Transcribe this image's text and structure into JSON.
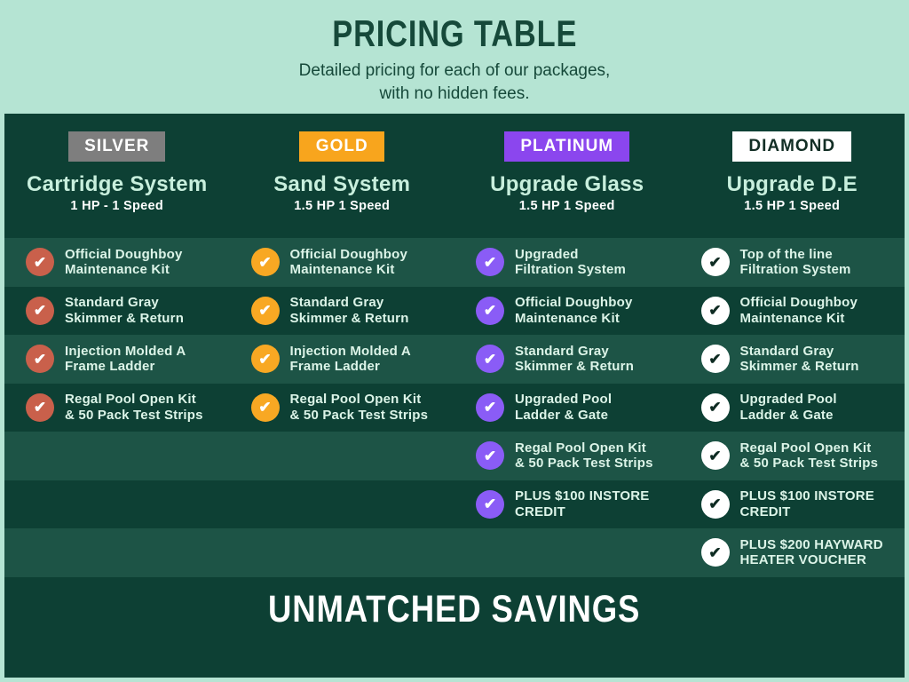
{
  "header": {
    "title": "PRICING TABLE",
    "subtitle": "Detailed pricing for each of our packages,\nwith no hidden fees."
  },
  "footer": {
    "banner": "UNMATCHED SAVINGS"
  },
  "colors": {
    "mint_background": "#b5e4d3",
    "panel_dark": "#0d4034",
    "row_light": "#1d5446",
    "heading_green": "#16493a",
    "title_mint": "#c8efdd",
    "feature_text": "#dcf4e8",
    "silver_badge": "#7e7e7e",
    "gold_badge": "#f8a51d",
    "platinum_badge": "#8b46ee",
    "diamond_badge": "#ffffff",
    "silver_check": "#c9604b",
    "gold_check": "#f8a823",
    "platinum_check": "#8a5cf6",
    "diamond_check": "#ffffff",
    "diamond_check_glyph": "#0e2b22"
  },
  "rows_count": 7,
  "columns": [
    {
      "id": "silver",
      "badge": "SILVER",
      "badge_bg": "#7e7e7e",
      "badge_text_color": "#ffffff",
      "check_bg": "#c9604b",
      "check_color": "#ffffff",
      "title": "Cartridge System",
      "subtitle": "1 HP - 1 Speed",
      "features": [
        "Official Doughboy\nMaintenance Kit",
        "Standard Gray\nSkimmer & Return",
        "Injection Molded A\nFrame Ladder",
        "Regal Pool Open Kit\n& 50 Pack Test Strips"
      ]
    },
    {
      "id": "gold",
      "badge": "GOLD",
      "badge_bg": "#f8a51d",
      "badge_text_color": "#ffffff",
      "check_bg": "#f8a823",
      "check_color": "#ffffff",
      "title": "Sand System",
      "subtitle": "1.5 HP 1 Speed",
      "features": [
        "Official Doughboy\nMaintenance Kit",
        "Standard Gray\nSkimmer & Return",
        "Injection Molded A\nFrame Ladder",
        "Regal Pool Open Kit\n& 50 Pack Test Strips"
      ]
    },
    {
      "id": "platinum",
      "badge": "PLATINUM",
      "badge_bg": "#8b46ee",
      "badge_text_color": "#ffffff",
      "check_bg": "#8a5cf6",
      "check_color": "#ffffff",
      "title": "Upgrade Glass",
      "subtitle": "1.5 HP 1 Speed",
      "features": [
        "Upgraded\nFiltration System",
        "Official Doughboy\nMaintenance Kit",
        "Standard Gray\nSkimmer & Return",
        "Upgraded Pool\nLadder & Gate",
        "Regal Pool Open Kit\n& 50 Pack Test Strips",
        "PLUS $100 INSTORE\nCREDIT"
      ]
    },
    {
      "id": "diamond",
      "badge": "DIAMOND",
      "badge_bg": "#ffffff",
      "badge_text_color": "#122e25",
      "check_bg": "#ffffff",
      "check_color": "#0e2b22",
      "title": "Upgrade D.E",
      "subtitle": "1.5 HP 1 Speed",
      "features": [
        "Top of the line\nFiltration System",
        "Official Doughboy\nMaintenance Kit",
        "Standard Gray\nSkimmer & Return",
        "Upgraded Pool\nLadder & Gate",
        "Regal Pool Open Kit\n& 50 Pack Test Strips",
        "PLUS $100 INSTORE\nCREDIT",
        "PLUS $200 HAYWARD\nHEATER VOUCHER"
      ]
    }
  ],
  "chart_data": {
    "type": "table",
    "title": "PRICING TABLE",
    "subtitle": "Detailed pricing for each of our packages, with no hidden fees.",
    "columns": [
      "SILVER",
      "GOLD",
      "PLATINUM",
      "DIAMOND"
    ],
    "column_systems": [
      "Cartridge System",
      "Sand System",
      "Upgrade Glass",
      "Upgrade D.E"
    ],
    "column_specs": [
      "1 HP - 1 Speed",
      "1.5 HP 1 Speed",
      "1.5 HP 1 Speed",
      "1.5 HP 1 Speed"
    ],
    "rows": [
      [
        "Official Doughboy Maintenance Kit",
        "Official Doughboy Maintenance Kit",
        "Upgraded Filtration System",
        "Top of the line Filtration System"
      ],
      [
        "Standard Gray Skimmer & Return",
        "Standard Gray Skimmer & Return",
        "Official Doughboy Maintenance Kit",
        "Official Doughboy Maintenance Kit"
      ],
      [
        "Injection Molded A Frame Ladder",
        "Injection Molded A Frame Ladder",
        "Standard Gray Skimmer & Return",
        "Standard Gray Skimmer & Return"
      ],
      [
        "Regal Pool Open Kit & 50 Pack Test Strips",
        "Regal Pool Open Kit & 50 Pack Test Strips",
        "Upgraded Pool Ladder & Gate",
        "Upgraded Pool Ladder & Gate"
      ],
      [
        "",
        "",
        "Regal Pool Open Kit & 50 Pack Test Strips",
        "Regal Pool Open Kit & 50 Pack Test Strips"
      ],
      [
        "",
        "",
        "PLUS $100 INSTORE CREDIT",
        "PLUS $100 INSTORE CREDIT"
      ],
      [
        "",
        "",
        "",
        "PLUS $200 HAYWARD HEATER VOUCHER"
      ]
    ],
    "footer": "UNMATCHED SAVINGS"
  }
}
